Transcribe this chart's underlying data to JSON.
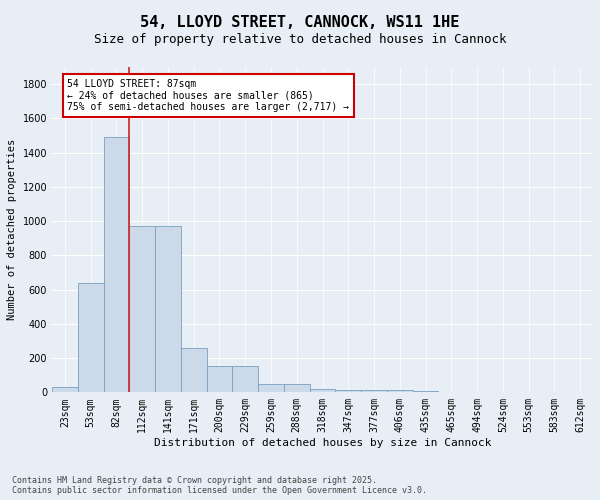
{
  "title": "54, LLOYD STREET, CANNOCK, WS11 1HE",
  "subtitle": "Size of property relative to detached houses in Cannock",
  "xlabel": "Distribution of detached houses by size in Cannock",
  "ylabel": "Number of detached properties",
  "bins": [
    "23sqm",
    "53sqm",
    "82sqm",
    "112sqm",
    "141sqm",
    "171sqm",
    "200sqm",
    "229sqm",
    "259sqm",
    "288sqm",
    "318sqm",
    "347sqm",
    "377sqm",
    "406sqm",
    "435sqm",
    "465sqm",
    "494sqm",
    "524sqm",
    "553sqm",
    "583sqm",
    "612sqm"
  ],
  "values": [
    30,
    640,
    1490,
    970,
    970,
    260,
    155,
    155,
    50,
    50,
    20,
    15,
    12,
    12,
    10,
    0,
    0,
    0,
    0,
    0,
    0
  ],
  "bar_color": "#ccd9e8",
  "bar_edge_color": "#7a9fc0",
  "vline_x": 2,
  "vline_color": "#cc2222",
  "annotation_text": "54 LLOYD STREET: 87sqm\n← 24% of detached houses are smaller (865)\n75% of semi-detached houses are larger (2,717) →",
  "annotation_box_color": "#ffffff",
  "annotation_box_edge": "#cc0000",
  "ylim": [
    0,
    1900
  ],
  "yticks": [
    0,
    200,
    400,
    600,
    800,
    1000,
    1200,
    1400,
    1600,
    1800
  ],
  "background_color": "#e8eef5",
  "grid_color": "#ffffff",
  "footer": "Contains HM Land Registry data © Crown copyright and database right 2025.\nContains public sector information licensed under the Open Government Licence v3.0.",
  "title_fontsize": 11,
  "subtitle_fontsize": 9,
  "xlabel_fontsize": 8,
  "ylabel_fontsize": 7.5,
  "tick_fontsize": 7,
  "annotation_fontsize": 7,
  "footer_fontsize": 6
}
